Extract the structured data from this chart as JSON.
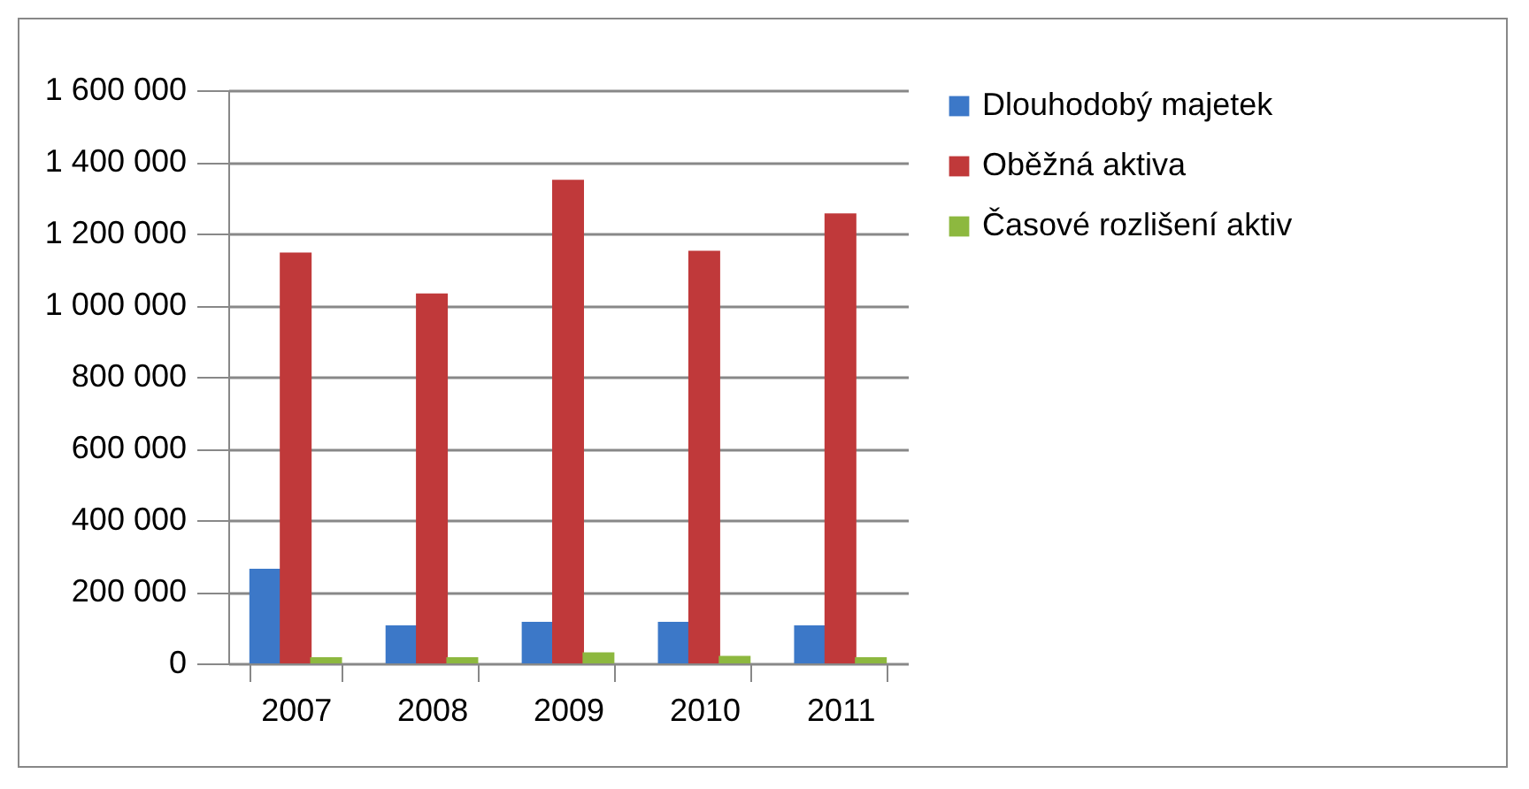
{
  "chart_data": {
    "type": "bar",
    "categories": [
      "2007",
      "2008",
      "2009",
      "2010",
      "2011"
    ],
    "series": [
      {
        "name": "Dlouhodobý majetek",
        "color": "#3c78c8",
        "values": [
          264000,
          106000,
          116000,
          116000,
          106000
        ]
      },
      {
        "name": "Oběžná aktiva",
        "color": "#c0393a",
        "values": [
          1147000,
          1033000,
          1350000,
          1152000,
          1256000
        ]
      },
      {
        "name": "Časové rozlišení aktiv",
        "color": "#8db83f",
        "values": [
          17000,
          17000,
          31000,
          21000,
          17000
        ]
      }
    ],
    "ylim": [
      0,
      1600000
    ],
    "yticks": [
      0,
      {
        "value": 200000,
        "label": "200 000"
      },
      {
        "value": 400000,
        "label": "400 000"
      },
      {
        "value": 600000,
        "label": "600 000"
      },
      {
        "value": 800000,
        "label": "800 000"
      },
      {
        "value": 1000000,
        "label": "1 000 000"
      },
      {
        "value": 1200000,
        "label": "1 200 000"
      },
      {
        "value": 1400000,
        "label": "1 400 000"
      },
      {
        "value": 1600000,
        "label": "1 600 000"
      }
    ],
    "grid": "y",
    "legend": "right"
  }
}
